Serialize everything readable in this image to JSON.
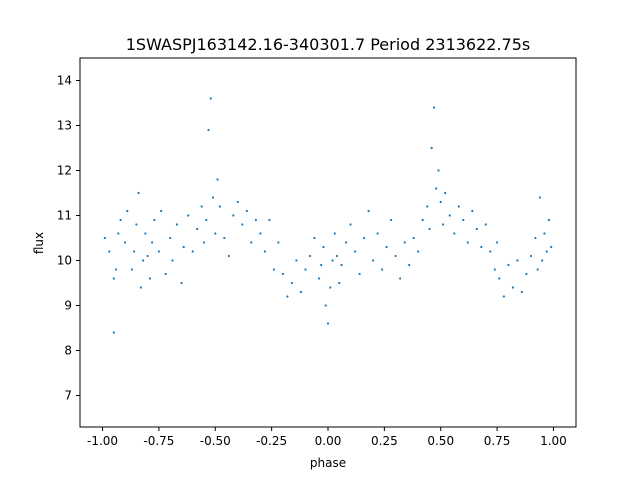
{
  "chart_data": {
    "type": "scatter",
    "title": "1SWASPJ163142.16-340301.7 Period 2313622.75s",
    "xlabel": "phase",
    "ylabel": "flux",
    "xlim": [
      -1.1,
      1.1
    ],
    "ylim": [
      6.3,
      14.5
    ],
    "xticks": [
      "-1.00",
      "-0.75",
      "-0.50",
      "-0.25",
      "0.00",
      "0.25",
      "0.50",
      "0.75",
      "1.00"
    ],
    "yticks": [
      "7",
      "8",
      "9",
      "10",
      "11",
      "12",
      "13",
      "14"
    ],
    "grid": false,
    "legend": "none",
    "point_color": "#1f77b4",
    "series": [
      {
        "x": [
          -0.99,
          -0.97,
          -0.95,
          -0.95,
          -0.94,
          -0.93,
          -0.92,
          -0.9,
          -0.89,
          -0.87,
          -0.86,
          -0.85,
          -0.84,
          -0.83,
          -0.82,
          -0.81,
          -0.8,
          -0.79,
          -0.78,
          -0.77,
          -0.75,
          -0.74,
          -0.72,
          -0.7,
          -0.69,
          -0.67,
          -0.65,
          -0.64,
          -0.62,
          -0.6,
          -0.58,
          -0.56,
          -0.55,
          -0.54,
          -0.53,
          -0.52,
          -0.51,
          -0.5,
          -0.49,
          -0.48,
          -0.46,
          -0.44,
          -0.42,
          -0.4,
          -0.38,
          -0.36,
          -0.34,
          -0.32,
          -0.3,
          -0.28,
          -0.26,
          -0.24,
          -0.22,
          -0.2,
          -0.18,
          -0.16,
          -0.14,
          -0.12,
          -0.1,
          -0.08,
          -0.06,
          -0.04,
          -0.03,
          -0.02,
          -0.01,
          0.0,
          0.01,
          0.02,
          0.03,
          0.04,
          0.05,
          0.06,
          0.08,
          0.1,
          0.12,
          0.14,
          0.16,
          0.18,
          0.2,
          0.22,
          0.24,
          0.26,
          0.28,
          0.3,
          0.32,
          0.34,
          0.36,
          0.38,
          0.4,
          0.42,
          0.44,
          0.45,
          0.46,
          0.47,
          0.48,
          0.49,
          0.5,
          0.51,
          0.52,
          0.54,
          0.56,
          0.58,
          0.6,
          0.62,
          0.64,
          0.66,
          0.68,
          0.7,
          0.72,
          0.74,
          0.75,
          0.76,
          0.78,
          0.8,
          0.82,
          0.84,
          0.86,
          0.88,
          0.9,
          0.92,
          0.93,
          0.94,
          0.95,
          0.96,
          0.97,
          0.98,
          0.99
        ],
        "y": [
          10.5,
          10.2,
          9.6,
          8.4,
          9.8,
          10.6,
          10.9,
          10.4,
          11.1,
          9.8,
          10.2,
          10.8,
          11.5,
          9.4,
          10.0,
          10.6,
          10.1,
          9.6,
          10.4,
          10.9,
          10.2,
          11.1,
          9.7,
          10.5,
          10.0,
          10.8,
          9.5,
          10.3,
          11.0,
          10.2,
          10.7,
          11.2,
          10.4,
          10.9,
          12.9,
          13.6,
          11.4,
          10.6,
          11.8,
          11.2,
          10.5,
          10.1,
          11.0,
          11.3,
          10.8,
          11.1,
          10.4,
          10.9,
          10.6,
          10.2,
          10.9,
          9.8,
          10.4,
          9.7,
          9.2,
          9.5,
          10.0,
          9.3,
          9.8,
          10.1,
          10.5,
          9.6,
          9.9,
          10.3,
          9.0,
          8.6,
          9.4,
          10.0,
          10.6,
          10.1,
          9.5,
          9.9,
          10.4,
          10.8,
          10.2,
          9.7,
          10.5,
          11.1,
          10.0,
          10.6,
          9.8,
          10.3,
          10.9,
          10.1,
          9.6,
          10.4,
          9.9,
          10.5,
          10.2,
          10.9,
          11.2,
          10.7,
          12.5,
          13.4,
          11.6,
          12.0,
          11.3,
          10.8,
          11.5,
          11.0,
          10.6,
          11.2,
          10.9,
          10.4,
          11.1,
          10.7,
          10.3,
          10.8,
          10.2,
          9.8,
          10.4,
          9.6,
          9.2,
          9.9,
          9.4,
          10.0,
          9.3,
          9.7,
          10.1,
          10.5,
          9.8,
          11.4,
          10.0,
          10.6,
          10.2,
          10.9,
          10.3
        ]
      }
    ]
  }
}
